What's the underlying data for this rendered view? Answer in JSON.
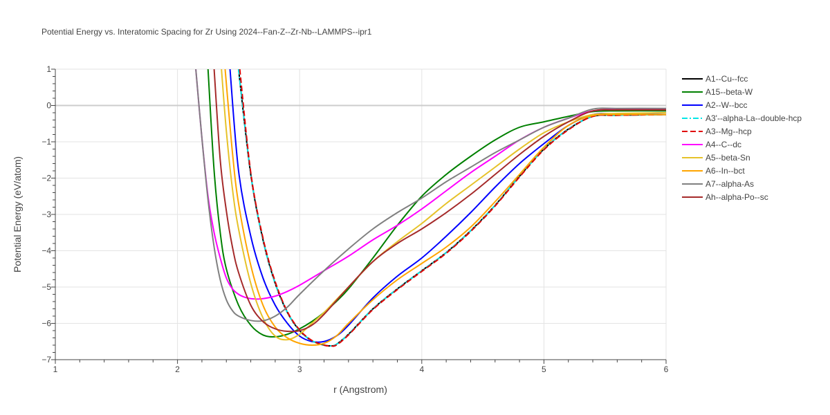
{
  "chart_data": {
    "type": "line",
    "title": "Potential Energy vs. Interatomic Spacing for Zr Using 2024--Fan-Z--Zr-Nb--LAMMPS--ipr1",
    "xlabel": "r (Angstrom)",
    "ylabel": "Potential Energy (eV/atom)",
    "xlim": [
      1,
      6
    ],
    "ylim": [
      -7,
      1
    ],
    "xticks": [
      1,
      2,
      3,
      4,
      5,
      6
    ],
    "yticks": [
      -7,
      -6,
      -5,
      -4,
      -3,
      -2,
      -1,
      0,
      1
    ],
    "grid": true,
    "legend_position": "right",
    "series": [
      {
        "name": "A1--Cu--fcc",
        "color": "#000000",
        "dash": "solid",
        "x": [
          2.5,
          2.6,
          2.7,
          2.8,
          2.9,
          3.0,
          3.1,
          3.2,
          3.25,
          3.3,
          3.4,
          3.6,
          3.8,
          4.0,
          4.2,
          4.4,
          4.6,
          4.8,
          5.0,
          5.2,
          5.4,
          5.6,
          6.0
        ],
        "y": [
          1.0,
          -1.9,
          -3.7,
          -4.9,
          -5.7,
          -6.2,
          -6.48,
          -6.6,
          -6.62,
          -6.58,
          -6.3,
          -5.6,
          -5.05,
          -4.55,
          -4.05,
          -3.45,
          -2.75,
          -1.95,
          -1.2,
          -0.65,
          -0.3,
          -0.27,
          -0.25
        ]
      },
      {
        "name": "A15--beta-W",
        "color": "#008000",
        "dash": "solid",
        "x": [
          2.25,
          2.3,
          2.35,
          2.4,
          2.5,
          2.6,
          2.7,
          2.8,
          2.9,
          3.0,
          3.1,
          3.2,
          3.3,
          3.4,
          3.6,
          3.8,
          4.0,
          4.2,
          4.4,
          4.6,
          4.8,
          5.0,
          5.2,
          5.4,
          5.6,
          6.0
        ],
        "y": [
          1.0,
          -1.8,
          -3.5,
          -4.5,
          -5.5,
          -6.05,
          -6.32,
          -6.37,
          -6.3,
          -6.15,
          -5.95,
          -5.7,
          -5.4,
          -5.05,
          -4.2,
          -3.3,
          -2.5,
          -1.9,
          -1.4,
          -0.95,
          -0.6,
          -0.45,
          -0.3,
          -0.17,
          -0.15,
          -0.15
        ]
      },
      {
        "name": "A2--W--bcc",
        "color": "#0000ff",
        "dash": "solid",
        "x": [
          2.43,
          2.5,
          2.6,
          2.7,
          2.8,
          2.9,
          3.0,
          3.1,
          3.2,
          3.3,
          3.4,
          3.6,
          3.8,
          4.0,
          4.2,
          4.4,
          4.6,
          4.8,
          5.0,
          5.2,
          5.4,
          5.6,
          6.0
        ],
        "y": [
          1.0,
          -1.8,
          -3.6,
          -4.75,
          -5.5,
          -6.0,
          -6.35,
          -6.5,
          -6.5,
          -6.35,
          -6.05,
          -5.3,
          -4.7,
          -4.2,
          -3.6,
          -2.95,
          -2.25,
          -1.6,
          -1.05,
          -0.55,
          -0.25,
          -0.23,
          -0.2
        ]
      },
      {
        "name": "A3'--alpha-La--double-hcp",
        "color": "#00e6e6",
        "dash": "dashdot",
        "x": [
          2.5,
          2.6,
          2.7,
          2.8,
          2.9,
          3.0,
          3.1,
          3.2,
          3.25,
          3.3,
          3.4,
          3.6,
          3.8,
          4.0,
          4.2,
          4.4,
          4.6,
          4.8,
          5.0,
          5.2,
          5.4,
          5.6,
          6.0
        ],
        "y": [
          1.0,
          -1.9,
          -3.7,
          -4.9,
          -5.7,
          -6.2,
          -6.48,
          -6.6,
          -6.62,
          -6.58,
          -6.3,
          -5.6,
          -5.05,
          -4.55,
          -4.05,
          -3.45,
          -2.75,
          -1.95,
          -1.2,
          -0.65,
          -0.3,
          -0.27,
          -0.25
        ]
      },
      {
        "name": "A3--Mg--hcp",
        "color": "#e00000",
        "dash": "dash",
        "x": [
          2.51,
          2.6,
          2.7,
          2.8,
          2.9,
          3.0,
          3.1,
          3.2,
          3.25,
          3.3,
          3.4,
          3.6,
          3.8,
          4.0,
          4.2,
          4.4,
          4.6,
          4.8,
          5.0,
          5.2,
          5.4,
          5.6,
          6.0
        ],
        "y": [
          1.0,
          -1.85,
          -3.65,
          -4.85,
          -5.68,
          -6.18,
          -6.47,
          -6.6,
          -6.62,
          -6.6,
          -6.32,
          -5.62,
          -5.07,
          -4.57,
          -4.07,
          -3.47,
          -2.77,
          -1.97,
          -1.22,
          -0.67,
          -0.3,
          -0.27,
          -0.25
        ]
      },
      {
        "name": "A4--C--dc",
        "color": "#ff00ff",
        "dash": "solid",
        "x": [
          2.15,
          2.2,
          2.25,
          2.3,
          2.35,
          2.4,
          2.45,
          2.5,
          2.55,
          2.6,
          2.65,
          2.7,
          2.8,
          2.9,
          3.0,
          3.2,
          3.4,
          3.6,
          3.8,
          4.0,
          4.2,
          4.4,
          4.6,
          4.8,
          5.0,
          5.2,
          5.4,
          5.6,
          6.0
        ],
        "y": [
          1.0,
          -0.9,
          -2.5,
          -3.5,
          -4.2,
          -4.75,
          -5.05,
          -5.2,
          -5.28,
          -5.32,
          -5.33,
          -5.32,
          -5.25,
          -5.12,
          -4.95,
          -4.55,
          -4.15,
          -3.7,
          -3.3,
          -2.85,
          -2.35,
          -1.85,
          -1.4,
          -0.95,
          -0.6,
          -0.35,
          -0.15,
          -0.1,
          -0.1
        ]
      },
      {
        "name": "A5--beta-Sn",
        "color": "#e6c229",
        "dash": "solid",
        "x": [
          2.36,
          2.4,
          2.45,
          2.5,
          2.6,
          2.7,
          2.8,
          2.9,
          3.0,
          3.1,
          3.2,
          3.3,
          3.4,
          3.6,
          3.8,
          4.0,
          4.2,
          4.4,
          4.6,
          4.8,
          5.0,
          5.2,
          5.4,
          5.6,
          6.0
        ],
        "y": [
          1.0,
          -0.7,
          -2.3,
          -3.4,
          -4.9,
          -5.85,
          -6.35,
          -6.45,
          -6.3,
          -6.0,
          -5.7,
          -5.35,
          -5.0,
          -4.3,
          -3.75,
          -3.25,
          -2.7,
          -2.2,
          -1.7,
          -1.2,
          -0.75,
          -0.45,
          -0.25,
          -0.22,
          -0.2
        ]
      },
      {
        "name": "A6--In--bct",
        "color": "#ffa500",
        "dash": "solid",
        "x": [
          2.39,
          2.45,
          2.5,
          2.6,
          2.7,
          2.8,
          2.9,
          3.0,
          3.1,
          3.2,
          3.3,
          3.4,
          3.6,
          3.8,
          4.0,
          4.2,
          4.4,
          4.6,
          4.8,
          5.0,
          5.2,
          5.4,
          5.6,
          6.0
        ],
        "y": [
          1.0,
          -1.3,
          -2.7,
          -4.4,
          -5.5,
          -6.1,
          -6.4,
          -6.55,
          -6.6,
          -6.55,
          -6.35,
          -6.0,
          -5.35,
          -4.8,
          -4.35,
          -3.9,
          -3.35,
          -2.65,
          -1.9,
          -1.15,
          -0.55,
          -0.28,
          -0.25,
          -0.25
        ]
      },
      {
        "name": "A7--alpha-As",
        "color": "#808080",
        "dash": "solid",
        "x": [
          2.15,
          2.2,
          2.25,
          2.3,
          2.35,
          2.4,
          2.45,
          2.5,
          2.6,
          2.7,
          2.8,
          2.9,
          3.0,
          3.2,
          3.4,
          3.6,
          3.8,
          4.0,
          4.2,
          4.4,
          4.6,
          4.8,
          5.0,
          5.2,
          5.4,
          5.6,
          6.0
        ],
        "y": [
          1.0,
          -0.9,
          -2.6,
          -3.9,
          -4.8,
          -5.35,
          -5.65,
          -5.8,
          -5.92,
          -5.93,
          -5.8,
          -5.55,
          -5.2,
          -4.55,
          -3.95,
          -3.4,
          -2.95,
          -2.55,
          -2.1,
          -1.7,
          -1.3,
          -0.95,
          -0.6,
          -0.35,
          -0.1,
          -0.08,
          -0.08
        ]
      },
      {
        "name": "Ah--alpha-Po--sc",
        "color": "#a52a2a",
        "dash": "solid",
        "x": [
          2.3,
          2.35,
          2.4,
          2.45,
          2.5,
          2.6,
          2.7,
          2.8,
          2.9,
          3.0,
          3.1,
          3.2,
          3.4,
          3.6,
          3.8,
          4.0,
          4.2,
          4.4,
          4.6,
          4.8,
          5.0,
          5.2,
          5.4,
          5.6,
          6.0
        ],
        "y": [
          1.0,
          -1.5,
          -2.9,
          -3.9,
          -4.6,
          -5.5,
          -5.95,
          -6.15,
          -6.22,
          -6.2,
          -6.05,
          -5.75,
          -5.0,
          -4.3,
          -3.8,
          -3.4,
          -2.95,
          -2.45,
          -1.9,
          -1.35,
          -0.85,
          -0.45,
          -0.15,
          -0.12,
          -0.12
        ]
      }
    ]
  }
}
